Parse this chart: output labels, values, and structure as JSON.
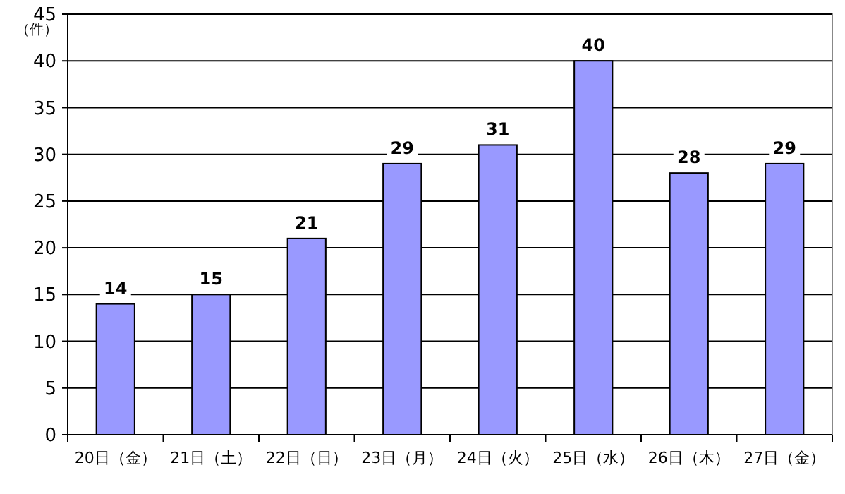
{
  "chart_data": {
    "type": "bar",
    "ylabel": "（件）",
    "categories": [
      "20日（金）",
      "21日（土）",
      "22日（日）",
      "23日（月）",
      "24日（火）",
      "25日（水）",
      "26日（木）",
      "27日（金）"
    ],
    "values": [
      14,
      15,
      21,
      29,
      31,
      40,
      28,
      29
    ],
    "color": "#9999ff",
    "ylim": [
      0,
      45
    ],
    "yticks": [
      0,
      5,
      10,
      15,
      20,
      25,
      30,
      35,
      40,
      45
    ],
    "grid": "y",
    "data_labels": true
  }
}
